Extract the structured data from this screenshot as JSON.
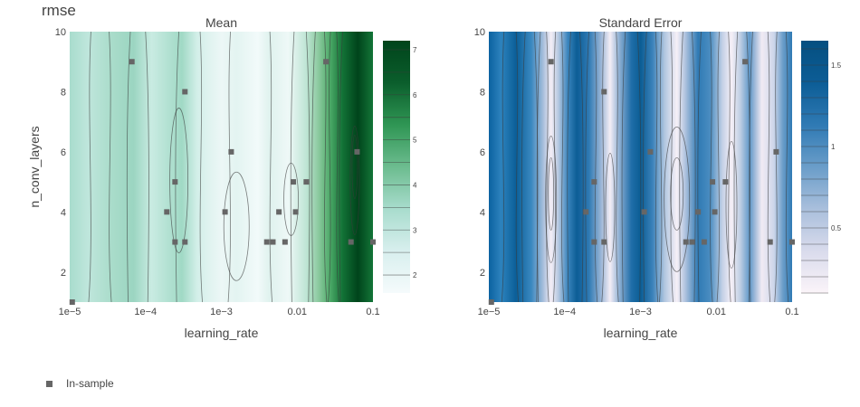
{
  "figure_title": "rmse",
  "legend": {
    "label": "In-sample",
    "marker_color": "#666666"
  },
  "chart_data": [
    {
      "type": "heatmap",
      "subtitle": "Mean",
      "xlabel": "learning_rate",
      "ylabel": "n_conv_layers",
      "x_scale": "log",
      "xlim": [
        1e-05,
        0.1
      ],
      "ylim": [
        1,
        10
      ],
      "x_tick_labels": [
        "1e−5",
        "1e−4",
        "1e−3",
        "0.01",
        "0.1"
      ],
      "y_tick_labels": [
        "2",
        "4",
        "6",
        "8",
        "10"
      ],
      "colorbar": {
        "range": [
          1.6,
          7.2
        ],
        "ticks": [
          "2",
          "3",
          "4",
          "5",
          "6",
          "7"
        ],
        "colors": [
          "#f5fbfc",
          "#d8efee",
          "#a8dccd",
          "#6cbc8f",
          "#2f9654",
          "#0b5e2c",
          "#00441b"
        ]
      },
      "contours": true
    },
    {
      "type": "heatmap",
      "subtitle": "Standard Error",
      "xlabel": "learning_rate",
      "ylabel": "",
      "x_scale": "log",
      "xlim": [
        1e-05,
        0.1
      ],
      "ylim": [
        1,
        10
      ],
      "x_tick_labels": [
        "1e−5",
        "1e−4",
        "1e−3",
        "0.01",
        "0.1"
      ],
      "y_tick_labels": [
        "2",
        "4",
        "6",
        "8",
        "10"
      ],
      "colorbar": {
        "range": [
          0.1,
          1.65
        ],
        "ticks": [
          "0.5",
          "1",
          "1.5"
        ],
        "colors": [
          "#fbf4f9",
          "#d9dbec",
          "#a9bfdc",
          "#6a9dc9",
          "#2f7ab4",
          "#0c5d96",
          "#054f80"
        ]
      },
      "contours": true
    }
  ],
  "in_sample_points": [
    {
      "lr": 1.08e-05,
      "n": 1
    },
    {
      "lr": 6.61e-05,
      "n": 9
    },
    {
      "lr": 0.000331,
      "n": 8
    },
    {
      "lr": 0.000191,
      "n": 4
    },
    {
      "lr": 0.000245,
      "n": 5
    },
    {
      "lr": 0.000245,
      "n": 3
    },
    {
      "lr": 0.000331,
      "n": 3
    },
    {
      "lr": 0.00112,
      "n": 4
    },
    {
      "lr": 0.00135,
      "n": 6
    },
    {
      "lr": 0.00398,
      "n": 3
    },
    {
      "lr": 0.00479,
      "n": 3
    },
    {
      "lr": 0.00575,
      "n": 4
    },
    {
      "lr": 0.00692,
      "n": 3
    },
    {
      "lr": 0.00891,
      "n": 5
    },
    {
      "lr": 0.00955,
      "n": 4
    },
    {
      "lr": 0.0132,
      "n": 5
    },
    {
      "lr": 0.024,
      "n": 9
    },
    {
      "lr": 0.0513,
      "n": 3
    },
    {
      "lr": 0.0617,
      "n": 6
    },
    {
      "lr": 0.1,
      "n": 3
    }
  ]
}
